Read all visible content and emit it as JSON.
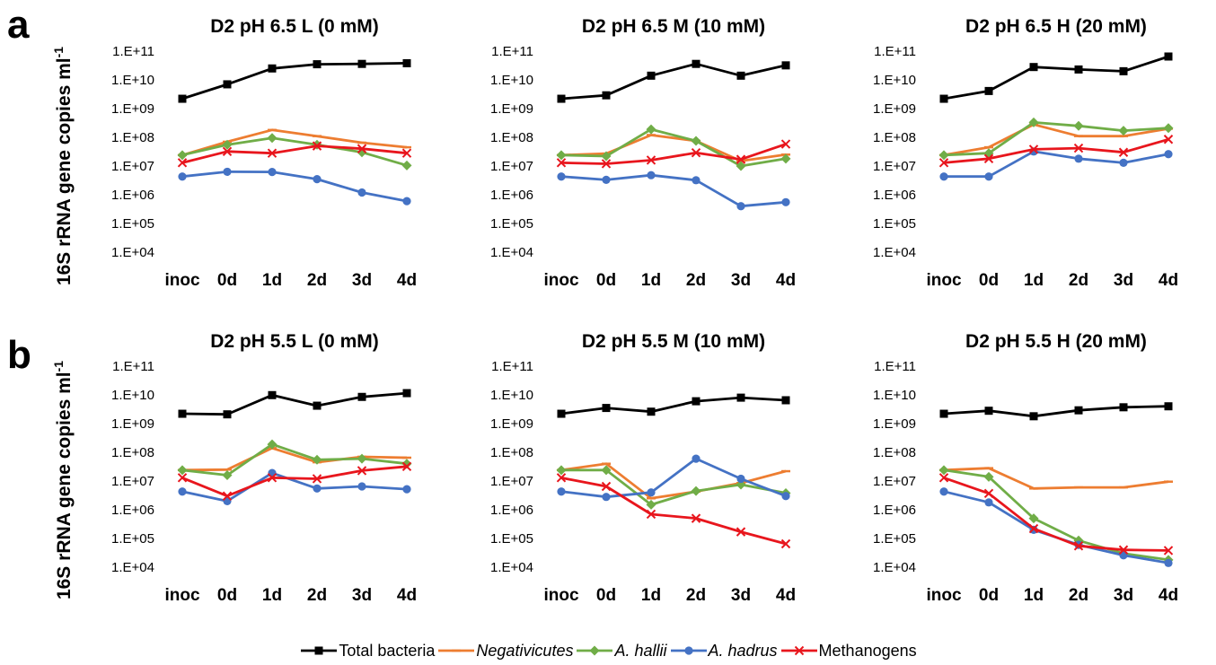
{
  "figure": {
    "y_axis_label": "16S rRNA gene copies ml",
    "y_axis_label_sup": "-1",
    "row_labels": [
      "a",
      "b"
    ]
  },
  "legend": [
    {
      "name": "Total bacteria",
      "color": "#000000",
      "marker": "square",
      "italic": false
    },
    {
      "name": "Negativicutes",
      "color": "#ED7D31",
      "marker": "dash",
      "italic": true
    },
    {
      "name": "A. hallii",
      "color": "#70AD47",
      "marker": "diamond",
      "italic": true
    },
    {
      "name": "A. hadrus",
      "color": "#4472C4",
      "marker": "circle",
      "italic": true
    },
    {
      "name": "Methanogens",
      "color": "#E8161D",
      "marker": "x",
      "italic": false
    }
  ],
  "chart_data": [
    {
      "type": "line",
      "title": "D2 pH 6.5 L (0 mM)",
      "yscale": "log",
      "ylim": [
        10000,
        100000000000
      ],
      "yticks": [
        "1.E+04",
        "1.E+05",
        "1.E+06",
        "1.E+07",
        "1.E+08",
        "1.E+09",
        "1.E+10",
        "1.E+11"
      ],
      "categories": [
        "inoc",
        "0d",
        "1d",
        "2d",
        "3d",
        "4d"
      ],
      "series": [
        {
          "name": "Total bacteria",
          "values": [
            2200000000.0,
            7000000000.0,
            25000000000.0,
            35000000000.0,
            36000000000.0,
            38000000000.0
          ]
        },
        {
          "name": "Negativicutes",
          "values": [
            24000000.0,
            70000000.0,
            180000000.0,
            110000000.0,
            65000000.0,
            45000000.0
          ]
        },
        {
          "name": "A. hallii",
          "values": [
            24000000.0,
            55000000.0,
            95000000.0,
            55000000.0,
            30000000.0,
            10500000.0
          ]
        },
        {
          "name": "A. hadrus",
          "values": [
            4300000.0,
            6300000.0,
            6200000.0,
            3500000.0,
            1200000.0,
            600000.0
          ]
        },
        {
          "name": "Methanogens",
          "values": [
            13000000.0,
            32000000.0,
            28000000.0,
            50000000.0,
            40000000.0,
            28000000.0
          ]
        }
      ]
    },
    {
      "type": "line",
      "title": "D2 pH 6.5 M (10 mM)",
      "yscale": "log",
      "ylim": [
        10000,
        100000000000
      ],
      "yticks": [
        "1.E+04",
        "1.E+05",
        "1.E+06",
        "1.E+07",
        "1.E+08",
        "1.E+09",
        "1.E+10",
        "1.E+11"
      ],
      "categories": [
        "inoc",
        "0d",
        "1d",
        "2d",
        "3d",
        "4d"
      ],
      "series": [
        {
          "name": "Total bacteria",
          "values": [
            2200000000.0,
            2900000000.0,
            14000000000.0,
            36000000000.0,
            14000000000.0,
            32000000000.0
          ]
        },
        {
          "name": "Negativicutes",
          "values": [
            24000000.0,
            27000000.0,
            120000000.0,
            75000000.0,
            15000000.0,
            25000000.0
          ]
        },
        {
          "name": "A. hallii",
          "values": [
            24000000.0,
            22000000.0,
            190000000.0,
            75000000.0,
            10000000.0,
            18000000.0
          ]
        },
        {
          "name": "A. hadrus",
          "values": [
            4300000.0,
            3300000.0,
            4800000.0,
            3200000.0,
            400000.0,
            550000.0
          ]
        },
        {
          "name": "Methanogens",
          "values": [
            13000000.0,
            12000000.0,
            16000000.0,
            29000000.0,
            17000000.0,
            58000000.0
          ]
        }
      ]
    },
    {
      "type": "line",
      "title": "D2 pH 6.5 H (20 mM)",
      "yscale": "log",
      "ylim": [
        10000,
        100000000000
      ],
      "yticks": [
        "1.E+04",
        "1.E+05",
        "1.E+06",
        "1.E+07",
        "1.E+08",
        "1.E+09",
        "1.E+10",
        "1.E+11"
      ],
      "categories": [
        "inoc",
        "0d",
        "1d",
        "2d",
        "3d",
        "4d"
      ],
      "series": [
        {
          "name": "Total bacteria",
          "values": [
            2200000000.0,
            4100000000.0,
            28000000000.0,
            23000000000.0,
            20000000000.0,
            65000000000.0
          ]
        },
        {
          "name": "Negativicutes",
          "values": [
            24000000.0,
            45000000.0,
            280000000.0,
            110000000.0,
            110000000.0,
            200000000.0
          ]
        },
        {
          "name": "A. hallii",
          "values": [
            24000000.0,
            28000000.0,
            330000000.0,
            250000000.0,
            170000000.0,
            210000000.0
          ]
        },
        {
          "name": "A. hadrus",
          "values": [
            4300000.0,
            4300000.0,
            32000000.0,
            18000000.0,
            13000000.0,
            26000000.0
          ]
        },
        {
          "name": "Methanogens",
          "values": [
            13000000.0,
            18000000.0,
            38000000.0,
            42000000.0,
            30000000.0,
            85000000.0
          ]
        }
      ]
    },
    {
      "type": "line",
      "title": "D2 pH 5.5 L (0 mM)",
      "yscale": "log",
      "ylim": [
        10000,
        100000000000
      ],
      "yticks": [
        "1.E+04",
        "1.E+05",
        "1.E+06",
        "1.E+07",
        "1.E+08",
        "1.E+09",
        "1.E+10",
        "1.E+11"
      ],
      "categories": [
        "inoc",
        "0d",
        "1d",
        "2d",
        "3d",
        "4d"
      ],
      "series": [
        {
          "name": "Total bacteria",
          "values": [
            2200000000.0,
            2100000000.0,
            9800000000.0,
            4200000000.0,
            8500000000.0,
            11500000000.0
          ]
        },
        {
          "name": "Negativicutes",
          "values": [
            24000000.0,
            25000000.0,
            140000000.0,
            45000000.0,
            70000000.0,
            65000000.0
          ]
        },
        {
          "name": "A. hallii",
          "values": [
            24000000.0,
            16000000.0,
            190000000.0,
            55000000.0,
            60000000.0,
            40000000.0
          ]
        },
        {
          "name": "A. hadrus",
          "values": [
            4300000.0,
            2000000.0,
            19000000.0,
            5500000.0,
            6500000.0,
            5200000.0
          ]
        },
        {
          "name": "Methanogens",
          "values": [
            13000000.0,
            3000000.0,
            13000000.0,
            12000000.0,
            23000000.0,
            32000000.0
          ]
        }
      ]
    },
    {
      "type": "line",
      "title": "D2 pH 5.5 M (10 mM)",
      "yscale": "log",
      "ylim": [
        10000,
        100000000000
      ],
      "yticks": [
        "1.E+04",
        "1.E+05",
        "1.E+06",
        "1.E+07",
        "1.E+08",
        "1.E+09",
        "1.E+10",
        "1.E+11"
      ],
      "categories": [
        "inoc",
        "0d",
        "1d",
        "2d",
        "3d",
        "4d"
      ],
      "series": [
        {
          "name": "Total bacteria",
          "values": [
            2200000000.0,
            3500000000.0,
            2600000000.0,
            6000000000.0,
            8000000000.0,
            6500000000.0
          ]
        },
        {
          "name": "Negativicutes",
          "values": [
            24000000.0,
            40000000.0,
            2500000.0,
            4300000.0,
            8500000.0,
            22000000.0
          ]
        },
        {
          "name": "A. hallii",
          "values": [
            24000000.0,
            24000000.0,
            1500000.0,
            4500000.0,
            7500000.0,
            3800000.0
          ]
        },
        {
          "name": "A. hadrus",
          "values": [
            4300000.0,
            2800000.0,
            4000000.0,
            60000000.0,
            12000000.0,
            3000000.0
          ]
        },
        {
          "name": "Methanogens",
          "values": [
            13000000.0,
            6500000.0,
            700000.0,
            500000.0,
            170000.0,
            65000.0
          ]
        }
      ]
    },
    {
      "type": "line",
      "title": "D2 pH 5.5 H (20 mM)",
      "yscale": "log",
      "ylim": [
        10000,
        100000000000
      ],
      "yticks": [
        "1.E+04",
        "1.E+05",
        "1.E+06",
        "1.E+07",
        "1.E+08",
        "1.E+09",
        "1.E+10",
        "1.E+11"
      ],
      "categories": [
        "inoc",
        "0d",
        "1d",
        "2d",
        "3d",
        "4d"
      ],
      "series": [
        {
          "name": "Total bacteria",
          "values": [
            2200000000.0,
            2800000000.0,
            1800000000.0,
            2900000000.0,
            3700000000.0,
            4000000000.0
          ]
        },
        {
          "name": "Negativicutes",
          "values": [
            24000000.0,
            28000000.0,
            5500000.0,
            6000000.0,
            6000000.0,
            9500000.0
          ]
        },
        {
          "name": "A. hallii",
          "values": [
            24000000.0,
            14000000.0,
            500000.0,
            85000.0,
            30000.0,
            18000.0
          ]
        },
        {
          "name": "A. hadrus",
          "values": [
            4300000.0,
            1800000.0,
            200000.0,
            60000.0,
            26000.0,
            14000.0
          ]
        },
        {
          "name": "Methanogens",
          "values": [
            13000000.0,
            3700000.0,
            220000.0,
            55000.0,
            40000.0,
            38000.0
          ]
        }
      ]
    }
  ]
}
